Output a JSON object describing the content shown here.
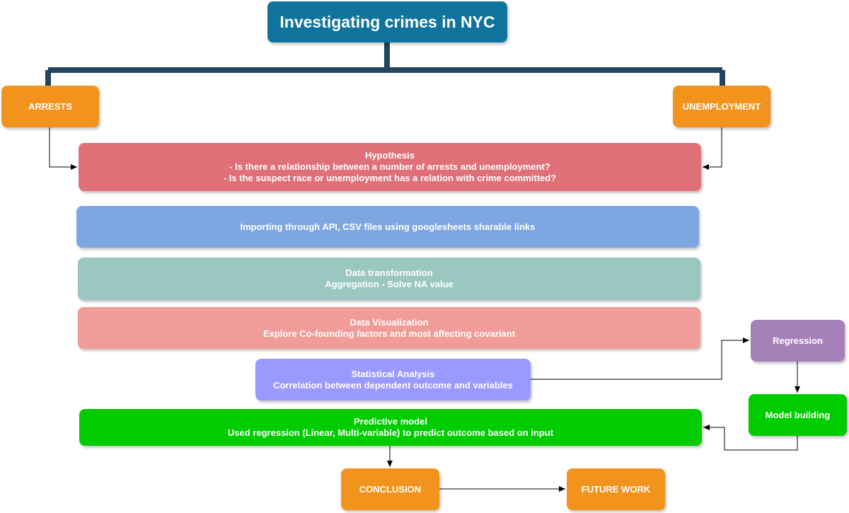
{
  "title": "Investigating crimes in NYC",
  "nodes": {
    "arrests": "ARRESTS",
    "unemployment": "UNEMPLOYMENT",
    "hypothesis": {
      "heading": "Hypothesis",
      "q1": "- Is there a relationship between a number of arrests and unemployment?",
      "q2": "- Is the suspect race or unemployment has a relation with crime committed?"
    },
    "import": "Importing through API, CSV files using googlesheets sharable links",
    "transform": {
      "heading": "Data transformation",
      "detail": "Aggregation - Solve NA value"
    },
    "visualization": {
      "heading": "Data Visualization",
      "detail": "Explore Co-founding factors and most affecting covariant"
    },
    "statistical": {
      "heading": "Statistical Analysis",
      "detail": "Correlation between dependent outcome and variables"
    },
    "predictive": {
      "heading": "Predictive model",
      "detail": "Used regression (Linear, Multi-variable) to predict outcome based on input"
    },
    "regression": "Regression",
    "model_building": "Model building",
    "conclusion": "CONCLUSION",
    "future_work": "FUTURE WORK"
  },
  "colors": {
    "title": "#10739e",
    "orange": "#f2931e",
    "hypothesis": "#e07078",
    "import": "#7ea6e0",
    "transform": "#9ac7bf",
    "visualization": "#f19c99",
    "statistical": "#9999ff",
    "green": "#00cc00",
    "regression": "#a680b8",
    "bracket": "#23445d",
    "connector": "#000000"
  }
}
